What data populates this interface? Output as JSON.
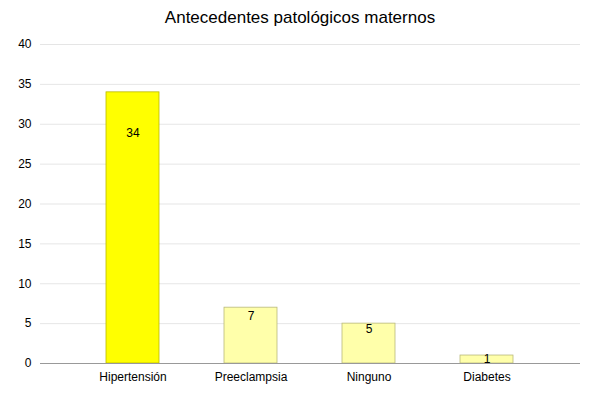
{
  "chart_data": {
    "type": "bar",
    "title": "Antecedentes patológicos maternos",
    "categories": [
      "Hipertensión",
      "Preeclampsia",
      "Ninguno",
      "Diabetes"
    ],
    "values": [
      34,
      7,
      5,
      1
    ],
    "colors": [
      "#ffff00",
      "#ffffaa",
      "#ffffaa",
      "#ffffaa"
    ],
    "ylim": [
      0,
      40
    ],
    "yticks": [
      0,
      5,
      10,
      15,
      20,
      25,
      30,
      35,
      40
    ],
    "grid": true,
    "data_labels": true
  }
}
